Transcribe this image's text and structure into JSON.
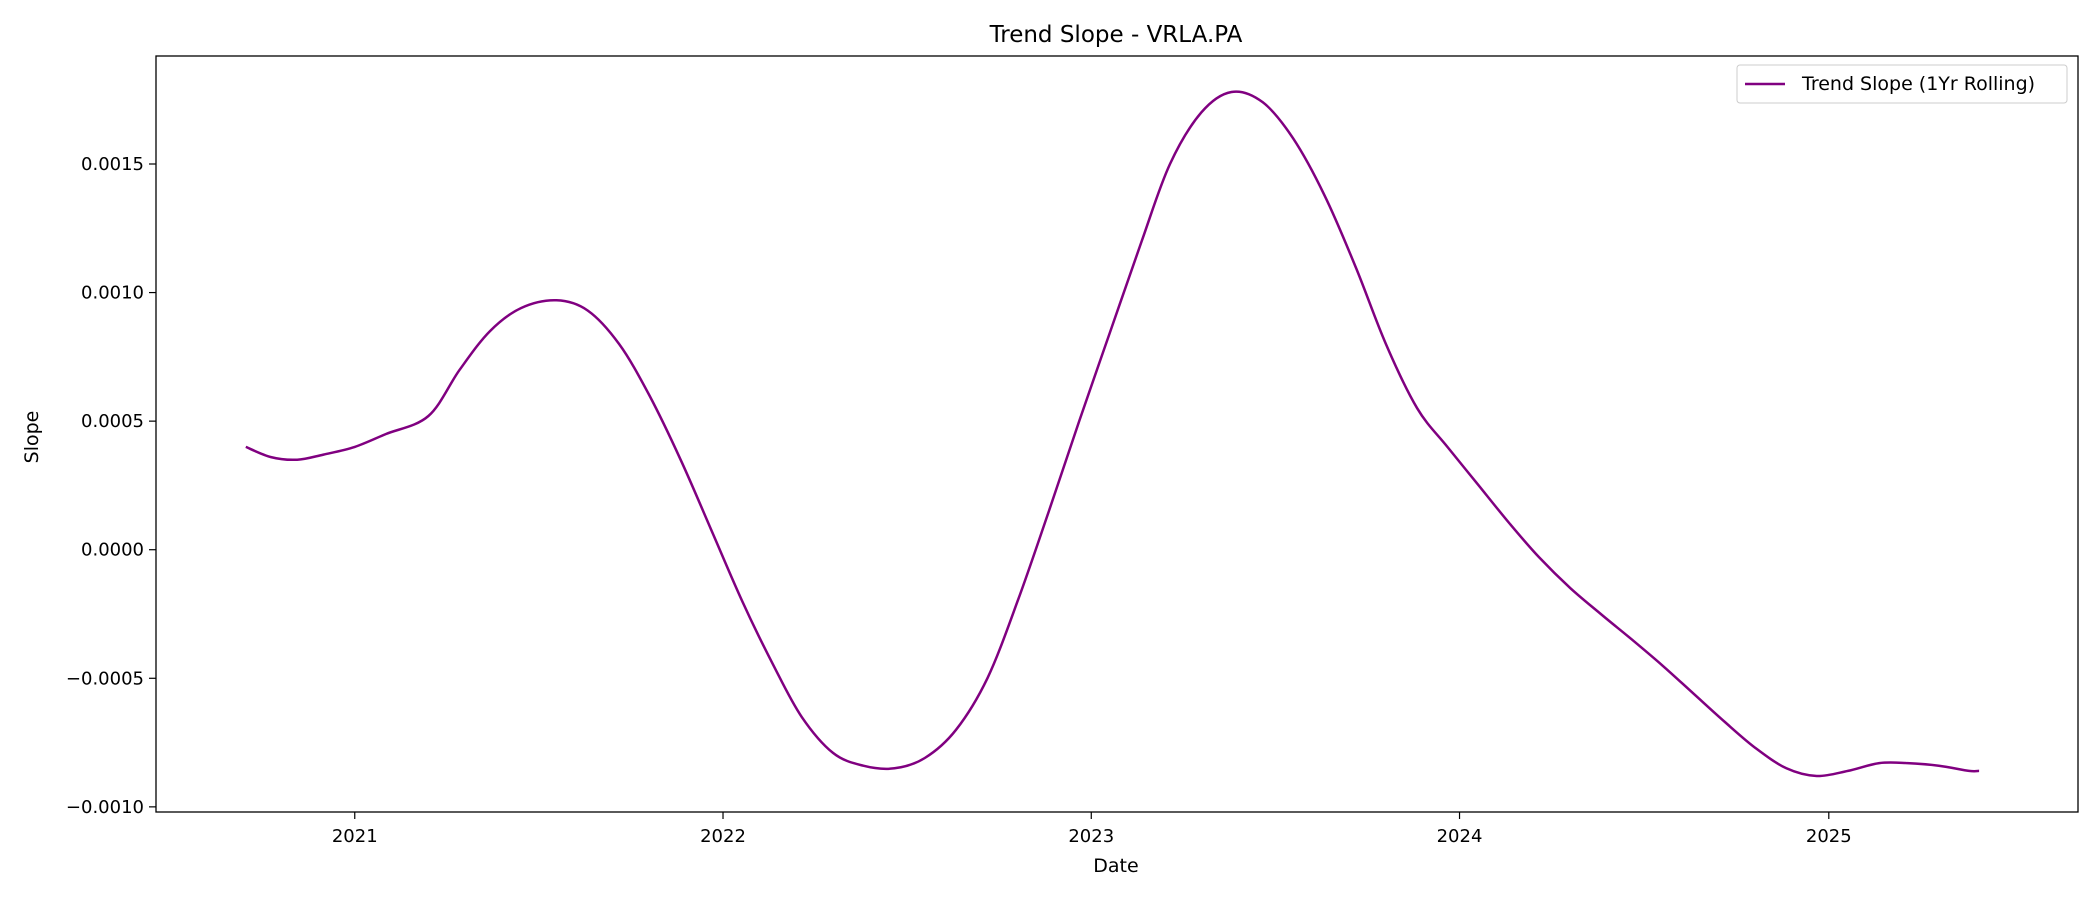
{
  "chart_data": {
    "type": "line",
    "title": "Trend Slope - VRLA.PA",
    "xlabel": "Date",
    "ylabel": "Slope",
    "x_type": "date",
    "xlim": [
      "2020-06-18",
      "2025-09-05"
    ],
    "ylim": [
      -0.00102,
      0.00192
    ],
    "x_ticks": [
      {
        "date": "2021-01-01",
        "label": "2021"
      },
      {
        "date": "2022-01-01",
        "label": "2022"
      },
      {
        "date": "2023-01-01",
        "label": "2023"
      },
      {
        "date": "2024-01-01",
        "label": "2024"
      },
      {
        "date": "2025-01-01",
        "label": "2025"
      }
    ],
    "y_ticks": [
      {
        "value": -0.001,
        "label": "−0.0010"
      },
      {
        "value": -0.0005,
        "label": "−0.0005"
      },
      {
        "value": 0.0,
        "label": "0.0000"
      },
      {
        "value": 0.0005,
        "label": "0.0005"
      },
      {
        "value": 0.001,
        "label": "0.0010"
      },
      {
        "value": 0.0015,
        "label": "0.0015"
      }
    ],
    "grid": false,
    "legend_position": "top-right",
    "series": [
      {
        "name": "Trend Slope (1Yr Rolling)",
        "color": "#800080",
        "points": [
          [
            "2020-09-15",
            0.0004
          ],
          [
            "2020-10-10",
            0.00036
          ],
          [
            "2020-11-05",
            0.00035
          ],
          [
            "2020-12-01",
            0.00037
          ],
          [
            "2021-01-01",
            0.0004
          ],
          [
            "2021-02-01",
            0.00045
          ],
          [
            "2021-03-15",
            0.00052
          ],
          [
            "2021-04-15",
            0.0007
          ],
          [
            "2021-05-15",
            0.00085
          ],
          [
            "2021-06-15",
            0.00094
          ],
          [
            "2021-07-20",
            0.00097
          ],
          [
            "2021-08-20",
            0.00093
          ],
          [
            "2021-09-20",
            0.0008
          ],
          [
            "2021-10-20",
            0.0006
          ],
          [
            "2021-11-20",
            0.00035
          ],
          [
            "2021-12-20",
            8e-05
          ],
          [
            "2022-01-20",
            -0.0002
          ],
          [
            "2022-02-20",
            -0.00045
          ],
          [
            "2022-03-20",
            -0.00065
          ],
          [
            "2022-04-20",
            -0.00079
          ],
          [
            "2022-05-20",
            -0.00084
          ],
          [
            "2022-06-20",
            -0.00085
          ],
          [
            "2022-07-20",
            -0.00081
          ],
          [
            "2022-08-20",
            -0.0007
          ],
          [
            "2022-09-20",
            -0.0005
          ],
          [
            "2022-10-20",
            -0.0002
          ],
          [
            "2022-11-20",
            0.00015
          ],
          [
            "2022-12-20",
            0.0005
          ],
          [
            "2023-01-20",
            0.00085
          ],
          [
            "2023-02-20",
            0.0012
          ],
          [
            "2023-03-20",
            0.0015
          ],
          [
            "2023-04-20",
            0.0017
          ],
          [
            "2023-05-20",
            0.00178
          ],
          [
            "2023-06-20",
            0.00174
          ],
          [
            "2023-07-20",
            0.0016
          ],
          [
            "2023-08-20",
            0.00138
          ],
          [
            "2023-09-20",
            0.0011
          ],
          [
            "2023-10-20",
            0.0008
          ],
          [
            "2023-11-20",
            0.00055
          ],
          [
            "2023-12-20",
            0.0004
          ],
          [
            "2024-01-20",
            0.00025
          ],
          [
            "2024-02-20",
            0.0001
          ],
          [
            "2024-03-20",
            -3e-05
          ],
          [
            "2024-04-20",
            -0.00015
          ],
          [
            "2024-05-20",
            -0.00025
          ],
          [
            "2024-06-20",
            -0.00035
          ],
          [
            "2024-07-20",
            -0.00045
          ],
          [
            "2024-08-20",
            -0.00056
          ],
          [
            "2024-09-20",
            -0.00067
          ],
          [
            "2024-10-20",
            -0.00077
          ],
          [
            "2024-11-20",
            -0.00085
          ],
          [
            "2024-12-20",
            -0.00088
          ],
          [
            "2025-01-20",
            -0.00086
          ],
          [
            "2025-02-20",
            -0.00083
          ],
          [
            "2025-03-20",
            -0.00083
          ],
          [
            "2025-04-20",
            -0.00084
          ],
          [
            "2025-05-20",
            -0.00086
          ],
          [
            "2025-05-30",
            -0.00086
          ]
        ]
      }
    ]
  }
}
